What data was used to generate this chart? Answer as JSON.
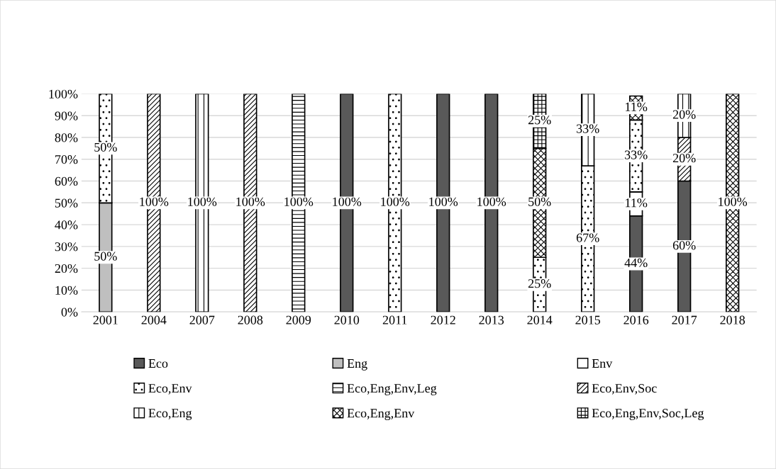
{
  "chart_data": {
    "type": "bar",
    "stacked": true,
    "categories": [
      "2001",
      "2004",
      "2007",
      "2008",
      "2009",
      "2010",
      "2011",
      "2012",
      "2013",
      "2014",
      "2015",
      "2016",
      "2017",
      "2018"
    ],
    "series": [
      {
        "name": "Eco",
        "color": "#595959",
        "values": [
          null,
          null,
          null,
          null,
          null,
          100,
          null,
          100,
          100,
          null,
          null,
          44,
          60,
          null
        ],
        "value_labels": [
          null,
          null,
          null,
          null,
          null,
          "100%",
          null,
          "100%",
          "100%",
          null,
          null,
          "44%",
          "60%",
          null
        ]
      },
      {
        "name": "Eng",
        "color": "#bfbfbf",
        "values": [
          50,
          null,
          null,
          null,
          null,
          null,
          null,
          null,
          null,
          null,
          null,
          null,
          null,
          null
        ],
        "value_labels": [
          "50%",
          null,
          null,
          null,
          null,
          null,
          null,
          null,
          null,
          null,
          null,
          null,
          null,
          null
        ]
      },
      {
        "name": "Env",
        "color": "#ffffff",
        "values": [
          null,
          null,
          null,
          null,
          null,
          null,
          null,
          null,
          null,
          null,
          null,
          11,
          null,
          null
        ],
        "value_labels": [
          null,
          null,
          null,
          null,
          null,
          null,
          null,
          null,
          null,
          null,
          null,
          "11%",
          null,
          null
        ]
      },
      {
        "name": "Eco,Env",
        "color": "#000000",
        "values": [
          50,
          null,
          null,
          null,
          null,
          null,
          100,
          null,
          null,
          25,
          67,
          33,
          null,
          null
        ],
        "value_labels": [
          "50%",
          null,
          null,
          null,
          null,
          null,
          "100%",
          null,
          null,
          "25%",
          "67%",
          "33%",
          null,
          null
        ]
      },
      {
        "name": "Eco,Eng,Env,Leg",
        "color": "#000000",
        "values": [
          null,
          null,
          null,
          null,
          100,
          null,
          null,
          null,
          null,
          null,
          null,
          null,
          null,
          null
        ],
        "value_labels": [
          null,
          null,
          null,
          null,
          "100%",
          null,
          null,
          null,
          null,
          null,
          null,
          null,
          null,
          null
        ]
      },
      {
        "name": "Eco,Env,Soc",
        "color": "#000000",
        "values": [
          null,
          100,
          null,
          100,
          null,
          null,
          null,
          null,
          null,
          null,
          null,
          null,
          20,
          null
        ],
        "value_labels": [
          null,
          "100%",
          null,
          "100%",
          null,
          null,
          null,
          null,
          null,
          null,
          null,
          null,
          "20%",
          null
        ]
      },
      {
        "name": "Eco,Eng",
        "color": "#000000",
        "values": [
          null,
          null,
          100,
          null,
          null,
          null,
          null,
          null,
          null,
          null,
          33,
          null,
          20,
          null
        ],
        "value_labels": [
          null,
          null,
          "100%",
          null,
          null,
          null,
          null,
          null,
          null,
          null,
          "33%",
          null,
          "20%",
          null
        ]
      },
      {
        "name": "Eco,Eng,Env",
        "color": "#000000",
        "values": [
          null,
          null,
          null,
          null,
          null,
          null,
          null,
          null,
          null,
          50,
          null,
          11,
          null,
          100
        ],
        "value_labels": [
          null,
          null,
          null,
          null,
          null,
          null,
          null,
          null,
          null,
          "50%",
          null,
          "11%",
          null,
          "100%"
        ]
      },
      {
        "name": "Eco,Eng,Env,Soc,Leg",
        "color": "#000000",
        "values": [
          null,
          null,
          null,
          null,
          null,
          null,
          null,
          null,
          null,
          25,
          null,
          null,
          null,
          null
        ],
        "value_labels": [
          null,
          null,
          null,
          null,
          null,
          null,
          null,
          null,
          null,
          "25%",
          null,
          null,
          null,
          null
        ]
      }
    ],
    "ylim": [
      0,
      100
    ],
    "yticks": [
      {
        "value": 0,
        "label": "0%"
      },
      {
        "value": 10,
        "label": "10%"
      },
      {
        "value": 20,
        "label": "20%"
      },
      {
        "value": 30,
        "label": "30%"
      },
      {
        "value": 40,
        "label": "40%"
      },
      {
        "value": 50,
        "label": "50%"
      },
      {
        "value": 60,
        "label": "60%"
      },
      {
        "value": 70,
        "label": "70%"
      },
      {
        "value": 80,
        "label": "80%"
      },
      {
        "value": 90,
        "label": "90%"
      },
      {
        "value": 100,
        "label": "100%"
      }
    ],
    "grid": "y",
    "legend": "bottom"
  }
}
